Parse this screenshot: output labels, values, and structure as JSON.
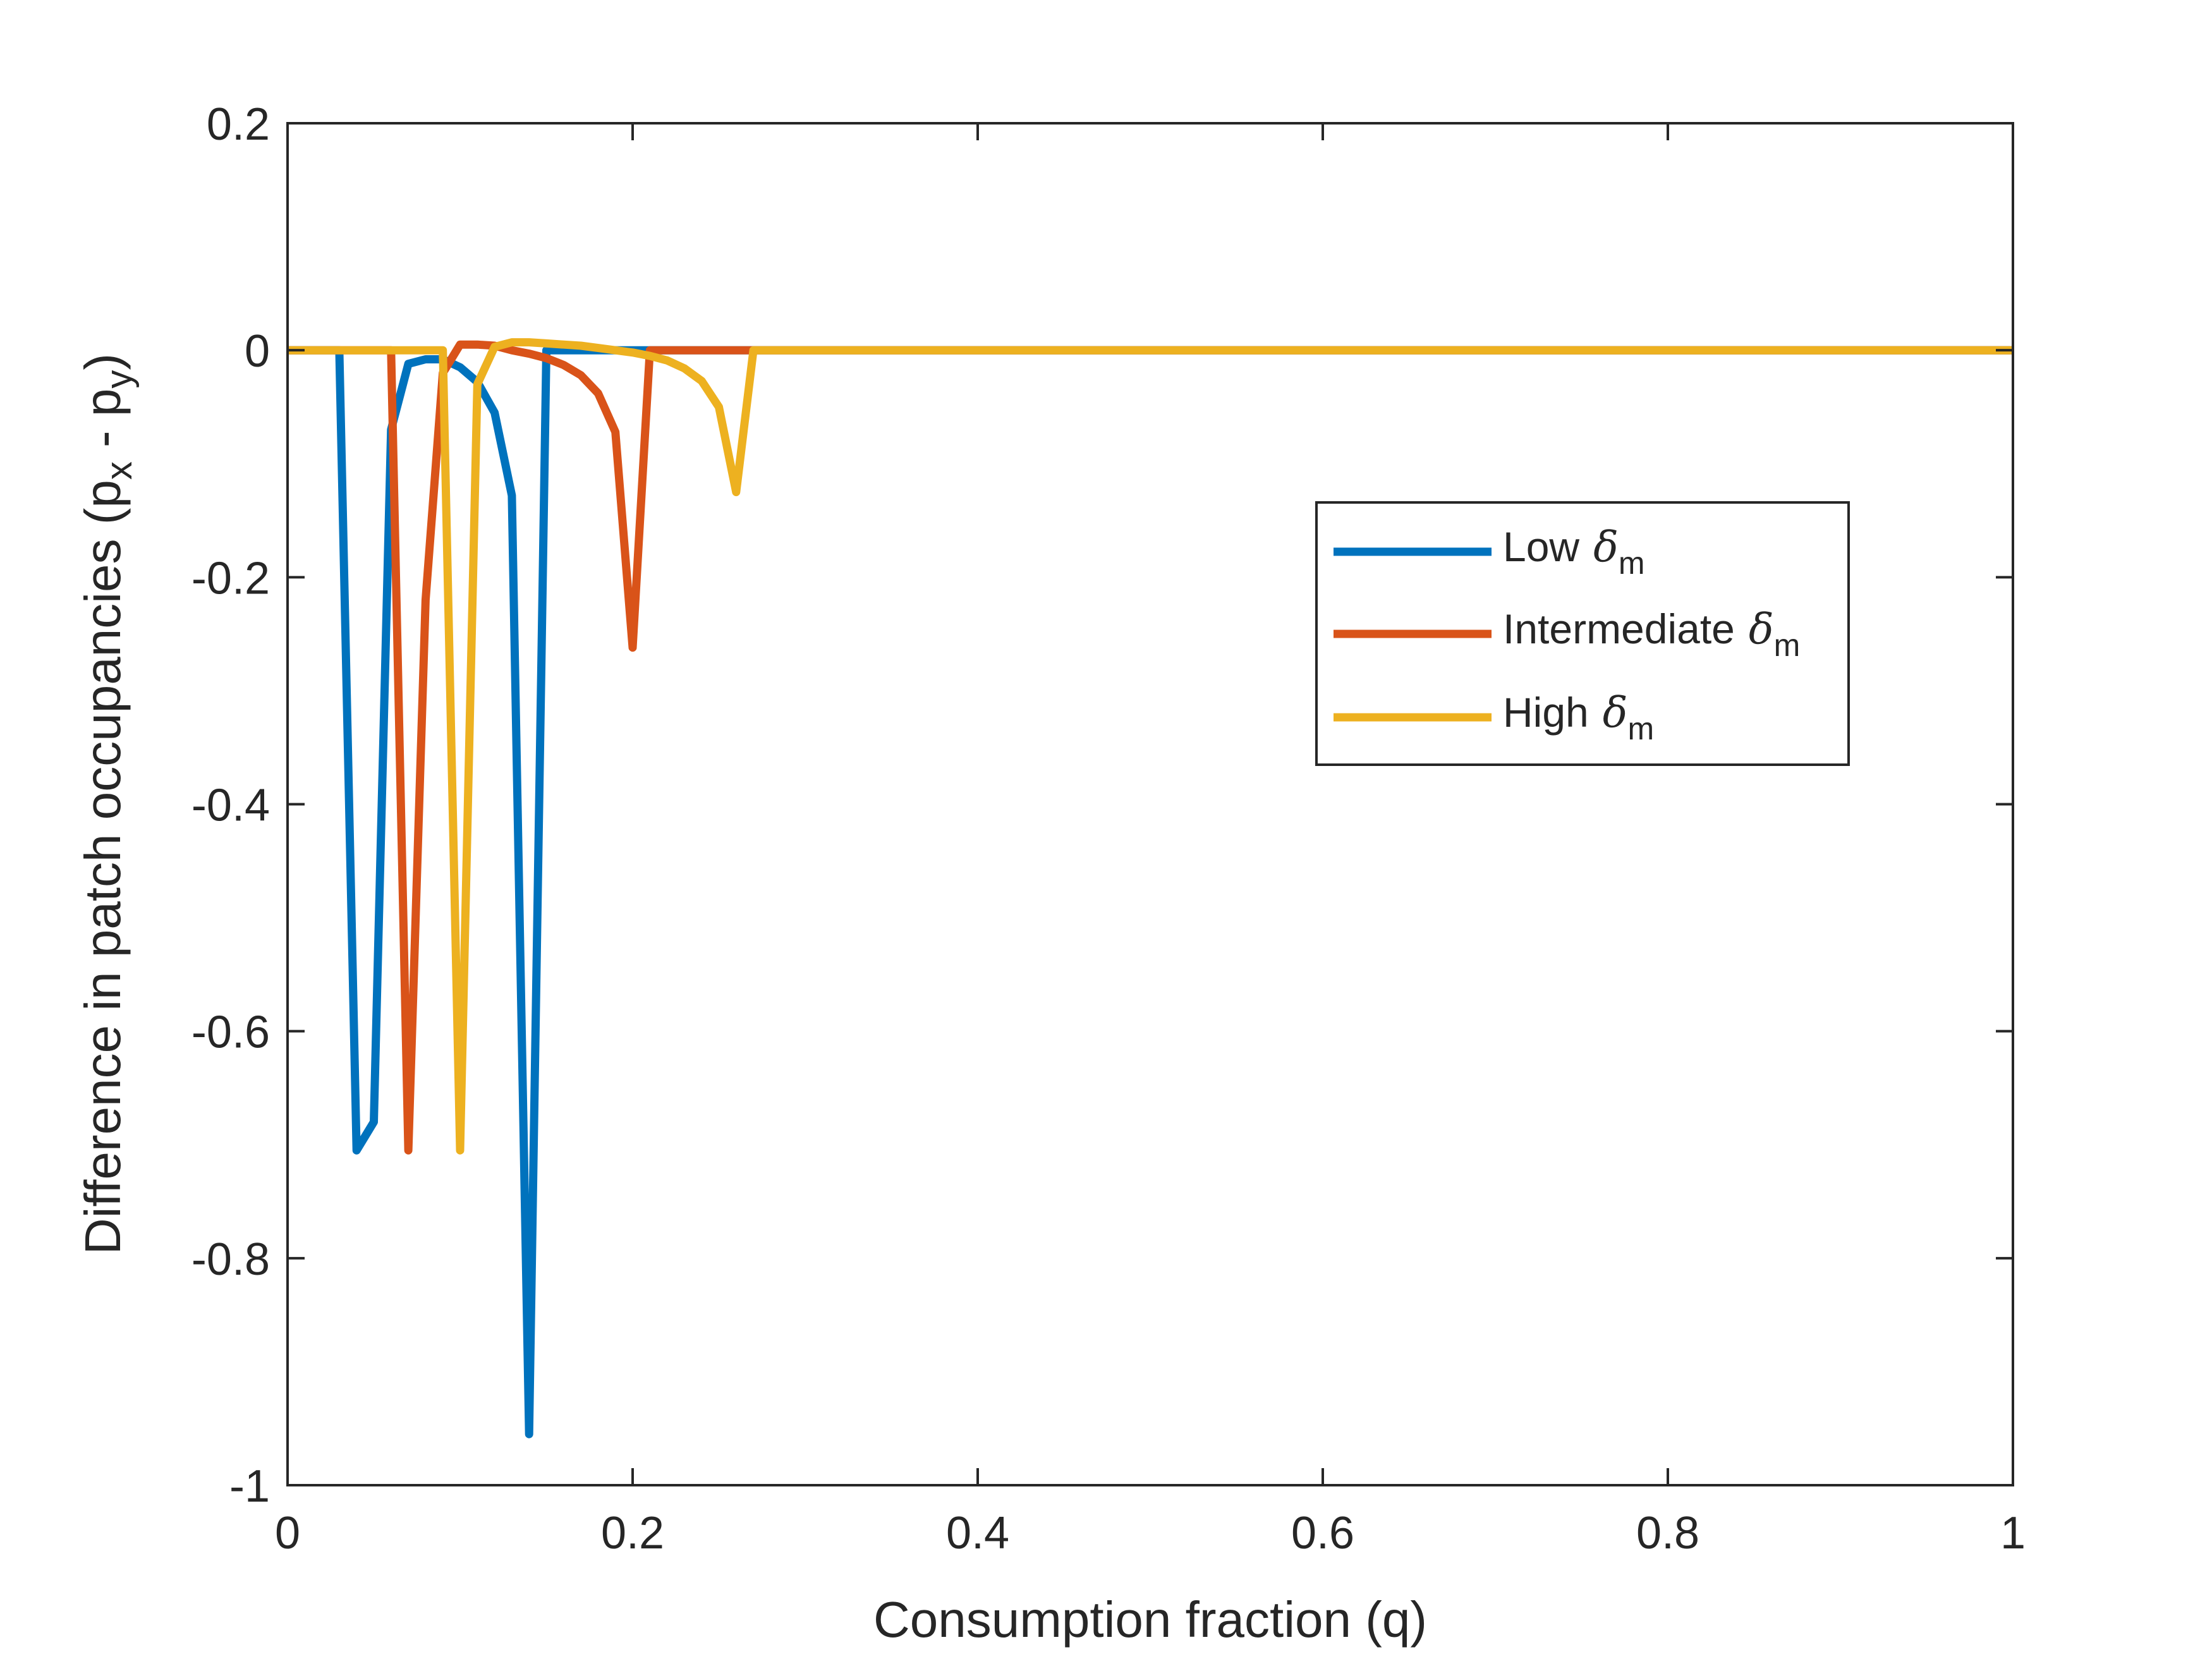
{
  "chart_data": {
    "type": "line",
    "title": "",
    "xlabel": "Consumption fraction (q)",
    "ylabel": {
      "prefix": "Difference in patch occupancies (p",
      "sub1": "x",
      "mid": " - p",
      "sub2": "y",
      "suffix": ")"
    },
    "xlim": [
      0,
      1
    ],
    "ylim": [
      -1,
      0.2
    ],
    "xticks": [
      0,
      0.2,
      0.4,
      0.6,
      0.8,
      1
    ],
    "xtick_labels": [
      "0",
      "0.2",
      "0.4",
      "0.6",
      "0.8",
      "1"
    ],
    "yticks": [
      0.2,
      0,
      -0.2,
      -0.4,
      -0.6,
      -0.8,
      -1
    ],
    "ytick_labels": [
      "0.2",
      "0",
      "-0.2",
      "-0.4",
      "-0.6",
      "-0.8",
      "-1"
    ],
    "grid": false,
    "legend_position": "right",
    "series": [
      {
        "name": "Low",
        "symbol": "δ",
        "subscript": "m",
        "color": "#0072BD",
        "x": [
          0,
          0.01,
          0.02,
          0.03,
          0.04,
          0.05,
          0.06,
          0.07,
          0.08,
          0.09,
          0.1,
          0.11,
          0.12,
          0.13,
          0.14,
          0.15,
          0.16,
          0.17,
          0.18,
          0.19,
          0.2,
          0.21,
          0.22,
          0.3,
          0.4,
          0.5,
          0.6,
          0.7,
          0.8,
          0.9,
          1
        ],
        "y": [
          0,
          0,
          0,
          0,
          -0.705,
          -0.68,
          -0.07,
          -0.012,
          -0.008,
          -0.008,
          -0.015,
          -0.028,
          -0.055,
          -0.128,
          -0.955,
          0,
          0,
          0,
          0,
          0,
          0,
          0,
          0,
          0,
          0,
          0,
          0,
          0,
          0,
          0,
          0
        ]
      },
      {
        "name": "Intermediate",
        "symbol": "δ",
        "subscript": "m",
        "color": "#D95319",
        "x": [
          0,
          0.01,
          0.02,
          0.03,
          0.04,
          0.05,
          0.06,
          0.07,
          0.08,
          0.09,
          0.1,
          0.11,
          0.12,
          0.13,
          0.14,
          0.15,
          0.16,
          0.17,
          0.18,
          0.19,
          0.2,
          0.21,
          0.22,
          0.23,
          0.24,
          0.25,
          0.26,
          0.27,
          0.3,
          0.4,
          0.5,
          0.6,
          0.7,
          0.8,
          0.9,
          1
        ],
        "y": [
          0,
          0,
          0,
          0,
          0,
          0,
          0,
          -0.705,
          -0.22,
          -0.02,
          0.005,
          0.005,
          0.004,
          0.0,
          -0.003,
          -0.007,
          -0.013,
          -0.022,
          -0.038,
          -0.072,
          -0.262,
          0,
          0,
          0,
          0,
          0,
          0,
          0,
          0,
          0,
          0,
          0,
          0,
          0,
          0,
          0
        ]
      },
      {
        "name": "High",
        "symbol": "δ",
        "subscript": "m",
        "color": "#EDB120",
        "x": [
          0,
          0.01,
          0.02,
          0.03,
          0.04,
          0.05,
          0.06,
          0.07,
          0.08,
          0.09,
          0.1,
          0.11,
          0.12,
          0.13,
          0.14,
          0.15,
          0.16,
          0.17,
          0.18,
          0.19,
          0.2,
          0.21,
          0.22,
          0.23,
          0.24,
          0.25,
          0.26,
          0.27,
          0.28,
          0.3,
          0.4,
          0.5,
          0.6,
          0.7,
          0.8,
          0.9,
          1
        ],
        "y": [
          0,
          0,
          0,
          0,
          0,
          0,
          0,
          0,
          0,
          0,
          -0.705,
          -0.03,
          0.003,
          0.007,
          0.007,
          0.006,
          0.005,
          0.004,
          0.002,
          0.0,
          -0.002,
          -0.005,
          -0.009,
          -0.016,
          -0.027,
          -0.05,
          -0.125,
          0,
          0,
          0,
          0,
          0,
          0,
          0,
          0,
          0,
          0
        ]
      }
    ]
  }
}
